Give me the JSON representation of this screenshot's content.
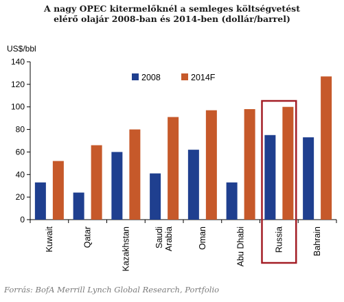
{
  "chart_data": {
    "type": "bar",
    "title": [
      "A nagy OPEC kitermelőknél a semleges költségvetést",
      "elérő olajár 2008-ban és 2014-ben (dollár/barrel)"
    ],
    "ylabel": "US$/bbl",
    "ylim": [
      0,
      140
    ],
    "yticks": [
      0,
      20,
      40,
      60,
      80,
      100,
      120,
      140
    ],
    "categories": [
      [
        "Kuwait"
      ],
      [
        "Qatar"
      ],
      [
        "Kazakhstan"
      ],
      [
        "Saudi",
        "Arabia"
      ],
      [
        "Oman"
      ],
      [
        "Abu Dhabi"
      ],
      [
        "Russia"
      ],
      [
        "Bahrain"
      ]
    ],
    "series": [
      {
        "name": "2008",
        "values": [
          33,
          24,
          60,
          41,
          62,
          33,
          75,
          73
        ]
      },
      {
        "name": "2014F",
        "values": [
          52,
          66,
          80,
          91,
          97,
          98,
          100,
          127
        ]
      }
    ],
    "legend_position": "top-center",
    "highlight_category": "Russia",
    "grid": false
  },
  "colors": {
    "series_2008": "#1f3f8f",
    "series_2014F": "#c6592a",
    "highlight": "#a31d25",
    "axis": "#000000"
  },
  "source": "Forrás: BofA Merrill Lynch Global Research, Portfolio"
}
